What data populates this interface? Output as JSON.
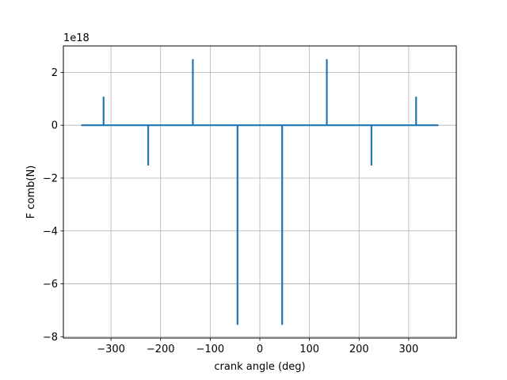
{
  "chart_data": {
    "type": "line",
    "title": "",
    "xlabel": "crank angle (deg)",
    "ylabel": "F comb(N)",
    "y_offset_label": "1e18",
    "xlim": [
      -396,
      396
    ],
    "ylim": [
      -8.05,
      3.0
    ],
    "x_ticks": [
      -300,
      -200,
      -100,
      0,
      100,
      200,
      300
    ],
    "x_tick_labels": [
      "−300",
      "−200",
      "−100",
      "0",
      "100",
      "200",
      "300"
    ],
    "y_ticks": [
      -8,
      -6,
      -4,
      -2,
      0,
      2
    ],
    "y_tick_labels": [
      "−8",
      "−6",
      "−4",
      "−2",
      "0",
      "2"
    ],
    "grid": true,
    "line_color": "#1f77b4",
    "series": [
      {
        "x": [
          -360,
          -315,
          -315,
          -315,
          -225,
          -225,
          -225,
          -135,
          -135,
          -135,
          -45,
          -45,
          -45,
          45,
          45,
          45,
          135,
          135,
          135,
          225,
          225,
          225,
          315,
          315,
          315,
          360
        ],
        "y": [
          0,
          0,
          1.08,
          0,
          0,
          -1.52,
          0,
          0,
          2.5,
          0,
          0,
          -7.55,
          0,
          0,
          -7.55,
          0,
          0,
          2.5,
          0,
          0,
          -1.52,
          0,
          0,
          1.08,
          0,
          0
        ]
      }
    ]
  }
}
